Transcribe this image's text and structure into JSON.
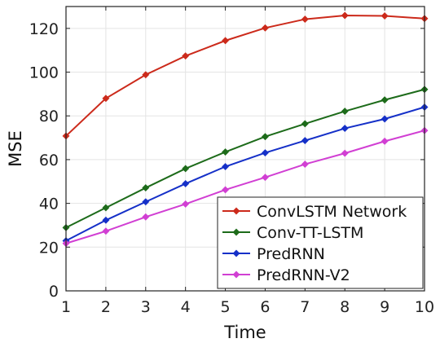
{
  "chart_data": {
    "type": "line",
    "title": "",
    "xlabel": "Time",
    "ylabel": "MSE",
    "x": [
      1,
      2,
      3,
      4,
      5,
      6,
      7,
      8,
      9,
      10
    ],
    "xlim": [
      1,
      10
    ],
    "ylim": [
      0,
      130
    ],
    "xticks": [
      1,
      2,
      3,
      4,
      5,
      6,
      7,
      8,
      9,
      10
    ],
    "yticks": [
      0,
      20,
      40,
      60,
      80,
      100,
      120
    ],
    "grid": true,
    "legend_position": "bottom-right",
    "series": [
      {
        "name": "ConvLSTM Network",
        "color": "#cc2a1b",
        "marker": "diamond",
        "values": [
          70.8,
          88.0,
          98.8,
          107.4,
          114.4,
          120.2,
          124.2,
          125.9,
          125.7,
          124.5
        ]
      },
      {
        "name": "Conv-TT-LSTM",
        "color": "#1d6b1a",
        "marker": "diamond",
        "values": [
          28.9,
          38.0,
          47.1,
          55.9,
          63.5,
          70.5,
          76.4,
          82.1,
          87.3,
          92.1
        ]
      },
      {
        "name": "PredRNN",
        "color": "#1530c8",
        "marker": "diamond",
        "values": [
          22.9,
          32.3,
          40.7,
          49.0,
          56.8,
          63.1,
          68.7,
          74.3,
          78.6,
          84.0
        ]
      },
      {
        "name": "PredRNN-V2",
        "color": "#d13fd3",
        "marker": "diamond",
        "values": [
          21.7,
          27.3,
          33.8,
          39.7,
          46.2,
          51.9,
          57.9,
          62.9,
          68.4,
          73.3
        ]
      }
    ]
  }
}
